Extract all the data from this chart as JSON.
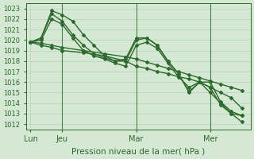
{
  "xlabel": "Pression niveau de la mer( hPa )",
  "ylim": [
    1011.5,
    1023.5
  ],
  "yticks": [
    1012,
    1013,
    1014,
    1015,
    1016,
    1017,
    1018,
    1019,
    1020,
    1021,
    1022,
    1023
  ],
  "background_color": "#d4e8d4",
  "line_color": "#2d6a2d",
  "grid_color": "#b0ccb0",
  "xtick_positions": [
    0,
    36,
    120,
    204
  ],
  "xtick_labels": [
    "Lun",
    "Jeu",
    "Mar",
    "Mer"
  ],
  "xlim": [
    -5,
    250
  ],
  "vline_positions": [
    36,
    120,
    204
  ],
  "series": [
    {
      "x": [
        0,
        12,
        24,
        36,
        60,
        84,
        108,
        120,
        132,
        144,
        156,
        168,
        180,
        192,
        204,
        216,
        228,
        240
      ],
      "y": [
        1019.8,
        1019.7,
        1019.5,
        1019.3,
        1019.0,
        1018.7,
        1018.4,
        1018.2,
        1017.9,
        1017.6,
        1017.3,
        1017.0,
        1016.7,
        1016.4,
        1016.1,
        1015.8,
        1015.5,
        1015.2
      ]
    },
    {
      "x": [
        0,
        12,
        24,
        36,
        48,
        60,
        72,
        84,
        96,
        108,
        120,
        132,
        144,
        156,
        168,
        180,
        192,
        204,
        216,
        228,
        240
      ],
      "y": [
        1019.8,
        1020.2,
        1022.8,
        1022.4,
        1021.8,
        1020.5,
        1019.5,
        1018.5,
        1018.0,
        1018.2,
        1020.2,
        1020.2,
        1019.5,
        1018.0,
        1016.8,
        1015.1,
        1016.0,
        1015.0,
        1014.0,
        1013.0,
        1012.2
      ]
    },
    {
      "x": [
        0,
        12,
        24,
        36,
        48,
        60,
        72,
        84,
        96,
        108,
        120,
        132,
        144,
        156,
        168,
        180,
        192,
        204,
        216,
        228,
        240
      ],
      "y": [
        1019.8,
        1020.2,
        1022.5,
        1021.8,
        1020.5,
        1019.5,
        1018.7,
        1018.3,
        1018.0,
        1018.0,
        1020.0,
        1020.2,
        1019.5,
        1018.0,
        1016.8,
        1015.0,
        1016.0,
        1016.0,
        1014.1,
        1013.2,
        1012.8
      ]
    },
    {
      "x": [
        0,
        12,
        24,
        36,
        48,
        60,
        72,
        84,
        96,
        108,
        120,
        132,
        144,
        156,
        168,
        180,
        192,
        204,
        216,
        228,
        240
      ],
      "y": [
        1019.8,
        1020.0,
        1022.0,
        1021.5,
        1020.2,
        1019.0,
        1018.5,
        1018.2,
        1017.8,
        1017.5,
        1019.5,
        1019.8,
        1019.2,
        1017.8,
        1016.5,
        1015.5,
        1016.0,
        1015.5,
        1013.8,
        1013.0,
        1012.8
      ]
    },
    {
      "x": [
        0,
        12,
        24,
        36,
        60,
        84,
        108,
        120,
        132,
        144,
        156,
        168,
        180,
        192,
        204,
        216,
        228,
        240
      ],
      "y": [
        1019.8,
        1019.5,
        1019.3,
        1019.0,
        1018.8,
        1018.5,
        1018.0,
        1017.5,
        1017.3,
        1017.0,
        1016.8,
        1016.5,
        1016.3,
        1016.0,
        1015.5,
        1015.0,
        1014.5,
        1013.5
      ]
    }
  ],
  "marker_style": "D",
  "marker_size": 2.0,
  "linewidth": 1.0
}
